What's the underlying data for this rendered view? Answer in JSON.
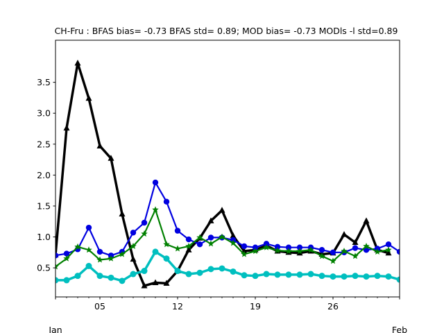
{
  "chart_data": {
    "type": "line",
    "title": "CH-Fru   : BFAS bias= -0.73 BFAS std= 0.89; MOD bias= -0.73 MODls -l std=0.89",
    "xlabel": "",
    "ylabel": "",
    "x_start": "2000-01-01",
    "x_end": "2000-02-01",
    "xlim": [
      "2000-01-01",
      "2000-02-01"
    ],
    "ylim": [
      0.03,
      4.18
    ],
    "x_ticks": [
      {
        "date": "2000-01-05",
        "label": "05"
      },
      {
        "date": "2000-01-12",
        "label": "12"
      },
      {
        "date": "2000-01-19",
        "label": "19"
      },
      {
        "date": "2000-01-26",
        "label": "26"
      }
    ],
    "x_month_labels": [
      {
        "date": "2000-01-01",
        "label": "Jan"
      },
      {
        "date": "2000-02-01",
        "label": "Feb"
      }
    ],
    "y_ticks": [
      0.5,
      1.0,
      1.5,
      2.0,
      2.5,
      3.0,
      3.5
    ],
    "y_tick_labels": [
      "0.5",
      "1.0",
      "1.5",
      "2.0",
      "2.5",
      "3.0",
      "3.5"
    ],
    "grid": false,
    "series": [
      {
        "color": "#000000",
        "marker": "triangle",
        "x": [
          "2000-01-01",
          "2000-01-02",
          "2000-01-03",
          "2000-01-04",
          "2000-01-05",
          "2000-01-06",
          "2000-01-07",
          "2000-01-08",
          "2000-01-09",
          "2000-01-10",
          "2000-01-11",
          "2000-01-12",
          "2000-01-13",
          "2000-01-14",
          "2000-01-15",
          "2000-01-16",
          "2000-01-17",
          "2000-01-18",
          "2000-01-19",
          "2000-01-20",
          "2000-01-21",
          "2000-01-22",
          "2000-01-23",
          "2000-01-24",
          "2000-01-25",
          "2000-01-26",
          "2000-01-27",
          "2000-01-28",
          "2000-01-29",
          "2000-01-30",
          "2000-01-31"
        ],
        "values": [
          0.71,
          2.76,
          3.81,
          3.24,
          2.47,
          2.27,
          1.37,
          0.64,
          0.21,
          0.26,
          0.25,
          0.45,
          0.79,
          0.98,
          1.26,
          1.43,
          1.02,
          0.77,
          0.79,
          0.86,
          0.77,
          0.75,
          0.74,
          0.77,
          0.72,
          0.74,
          1.04,
          0.91,
          1.26,
          0.79,
          0.74
        ]
      },
      {
        "color": "#0000e0",
        "marker": "circle",
        "x": [
          "2000-01-01",
          "2000-01-02",
          "2000-01-03",
          "2000-01-04",
          "2000-01-05",
          "2000-01-06",
          "2000-01-07",
          "2000-01-08",
          "2000-01-09",
          "2000-01-10",
          "2000-01-11",
          "2000-01-12",
          "2000-01-13",
          "2000-01-14",
          "2000-01-15",
          "2000-01-16",
          "2000-01-17",
          "2000-01-18",
          "2000-01-19",
          "2000-01-20",
          "2000-01-21",
          "2000-01-22",
          "2000-01-23",
          "2000-01-24",
          "2000-01-25",
          "2000-01-26",
          "2000-01-27",
          "2000-01-28",
          "2000-01-29",
          "2000-01-30",
          "2000-01-31",
          "2000-02-01"
        ],
        "values": [
          0.7,
          0.73,
          0.8,
          1.15,
          0.76,
          0.7,
          0.76,
          1.07,
          1.23,
          1.88,
          1.57,
          1.1,
          0.96,
          0.88,
          0.99,
          0.99,
          0.95,
          0.85,
          0.83,
          0.89,
          0.84,
          0.83,
          0.83,
          0.83,
          0.79,
          0.75,
          0.75,
          0.82,
          0.79,
          0.81,
          0.88,
          0.76
        ]
      },
      {
        "color": "#008000",
        "marker": "star",
        "x": [
          "2000-01-01",
          "2000-01-02",
          "2000-01-03",
          "2000-01-04",
          "2000-01-05",
          "2000-01-06",
          "2000-01-07",
          "2000-01-08",
          "2000-01-09",
          "2000-01-10",
          "2000-01-11",
          "2000-01-12",
          "2000-01-13",
          "2000-01-14",
          "2000-01-15",
          "2000-01-16",
          "2000-01-17",
          "2000-01-18",
          "2000-01-19",
          "2000-01-20",
          "2000-01-21",
          "2000-01-22",
          "2000-01-23",
          "2000-01-24",
          "2000-01-25",
          "2000-01-26",
          "2000-01-27",
          "2000-01-28",
          "2000-01-29",
          "2000-01-30",
          "2000-01-31"
        ],
        "values": [
          0.52,
          0.65,
          0.84,
          0.79,
          0.63,
          0.65,
          0.72,
          0.85,
          1.05,
          1.44,
          0.88,
          0.81,
          0.85,
          0.99,
          0.89,
          1.0,
          0.9,
          0.72,
          0.77,
          0.83,
          0.78,
          0.77,
          0.77,
          0.79,
          0.69,
          0.61,
          0.77,
          0.69,
          0.85,
          0.76,
          0.79
        ]
      },
      {
        "color": "#00bfbf",
        "marker": "circle",
        "x": [
          "2000-01-01",
          "2000-01-02",
          "2000-01-03",
          "2000-01-04",
          "2000-01-05",
          "2000-01-06",
          "2000-01-07",
          "2000-01-08",
          "2000-01-09",
          "2000-01-10",
          "2000-01-11",
          "2000-01-12",
          "2000-01-13",
          "2000-01-14",
          "2000-01-15",
          "2000-01-16",
          "2000-01-17",
          "2000-01-18",
          "2000-01-19",
          "2000-01-20",
          "2000-01-21",
          "2000-01-22",
          "2000-01-23",
          "2000-01-24",
          "2000-01-25",
          "2000-01-26",
          "2000-01-27",
          "2000-01-28",
          "2000-01-29",
          "2000-01-30",
          "2000-01-31",
          "2000-02-01"
        ],
        "values": [
          0.3,
          0.3,
          0.37,
          0.53,
          0.37,
          0.34,
          0.29,
          0.4,
          0.45,
          0.76,
          0.65,
          0.45,
          0.4,
          0.42,
          0.48,
          0.49,
          0.44,
          0.38,
          0.37,
          0.4,
          0.39,
          0.39,
          0.39,
          0.4,
          0.37,
          0.36,
          0.36,
          0.37,
          0.36,
          0.37,
          0.36,
          0.31
        ]
      }
    ]
  }
}
